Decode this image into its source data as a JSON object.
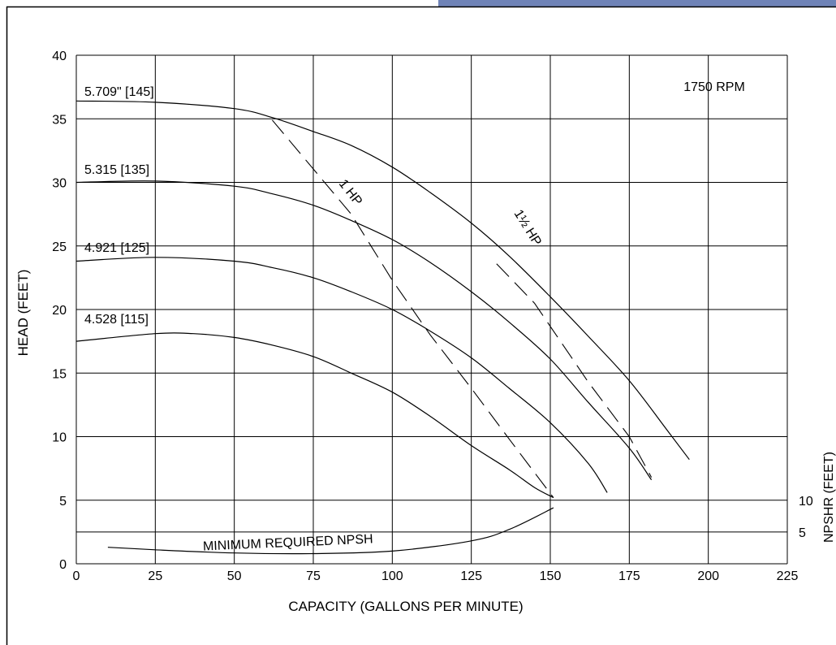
{
  "chart_data": {
    "type": "line",
    "annotation": "1750 RPM",
    "xlabel": "CAPACITY (GALLONS PER MINUTE)",
    "ylabel": "HEAD (FEET)",
    "ylabel_right": "NPSHR (FEET)",
    "xlim": [
      0,
      225
    ],
    "ylim": [
      0,
      40
    ],
    "x_ticks": [
      0,
      25,
      50,
      75,
      100,
      125,
      150,
      175,
      200,
      225
    ],
    "y_ticks": [
      0,
      5,
      10,
      15,
      20,
      25,
      30,
      35,
      40
    ],
    "npshr_ticks": [
      {
        "label": "10",
        "head": 5
      },
      {
        "label": "5",
        "head": 2.5
      }
    ],
    "grid": true,
    "impeller_curves": [
      {
        "name": "5.709\" [145]",
        "points": [
          [
            0,
            36.4
          ],
          [
            25,
            36.3
          ],
          [
            50,
            35.8
          ],
          [
            62,
            35.1
          ],
          [
            75,
            34.0
          ],
          [
            87,
            32.9
          ],
          [
            100,
            31.2
          ],
          [
            112,
            29.2
          ],
          [
            125,
            26.8
          ],
          [
            137,
            24.2
          ],
          [
            150,
            21.0
          ],
          [
            162,
            17.9
          ],
          [
            175,
            14.4
          ],
          [
            187,
            10.5
          ],
          [
            194,
            8.2
          ]
        ]
      },
      {
        "name": "5.315 [135]",
        "points": [
          [
            0,
            30.0
          ],
          [
            25,
            30.1
          ],
          [
            50,
            29.7
          ],
          [
            62,
            29.1
          ],
          [
            75,
            28.2
          ],
          [
            87,
            27.0
          ],
          [
            100,
            25.5
          ],
          [
            112,
            23.7
          ],
          [
            125,
            21.4
          ],
          [
            137,
            19.0
          ],
          [
            150,
            16.1
          ],
          [
            162,
            12.7
          ],
          [
            175,
            9.1
          ],
          [
            182,
            6.6
          ]
        ]
      },
      {
        "name": "4.921 [125]",
        "points": [
          [
            0,
            23.8
          ],
          [
            25,
            24.1
          ],
          [
            50,
            23.8
          ],
          [
            62,
            23.3
          ],
          [
            75,
            22.5
          ],
          [
            87,
            21.4
          ],
          [
            100,
            20.0
          ],
          [
            112,
            18.3
          ],
          [
            125,
            16.2
          ],
          [
            137,
            13.8
          ],
          [
            150,
            11.1
          ],
          [
            162,
            7.9
          ],
          [
            168,
            5.6
          ]
        ]
      },
      {
        "name": "4.528 [115]",
        "points": [
          [
            0,
            17.5
          ],
          [
            25,
            18.1
          ],
          [
            37,
            18.1
          ],
          [
            50,
            17.8
          ],
          [
            62,
            17.2
          ],
          [
            75,
            16.3
          ],
          [
            87,
            15.0
          ],
          [
            100,
            13.5
          ],
          [
            112,
            11.6
          ],
          [
            125,
            9.3
          ],
          [
            137,
            7.4
          ],
          [
            145,
            6.0
          ],
          [
            151,
            5.2
          ]
        ]
      }
    ],
    "power_lines": [
      {
        "name": "1 HP",
        "points": [
          [
            62,
            34.9
          ],
          [
            87,
            27.5
          ],
          [
            100,
            22.3
          ],
          [
            112,
            18.0
          ],
          [
            125,
            13.8
          ],
          [
            137,
            9.8
          ],
          [
            151,
            5.2
          ]
        ]
      },
      {
        "name": "1½ HP",
        "points": [
          [
            133,
            23.6
          ],
          [
            145,
            20.5
          ],
          [
            162,
            14.3
          ],
          [
            175,
            10.0
          ],
          [
            182,
            6.8
          ]
        ]
      }
    ],
    "npsh_curve": {
      "name": "MINIMUM REQUIRED NPSH",
      "points": [
        [
          10,
          1.3
        ],
        [
          25,
          1.1
        ],
        [
          50,
          0.85
        ],
        [
          75,
          0.8
        ],
        [
          100,
          1.0
        ],
        [
          125,
          1.8
        ],
        [
          137,
          2.7
        ],
        [
          151,
          4.4
        ]
      ]
    }
  }
}
